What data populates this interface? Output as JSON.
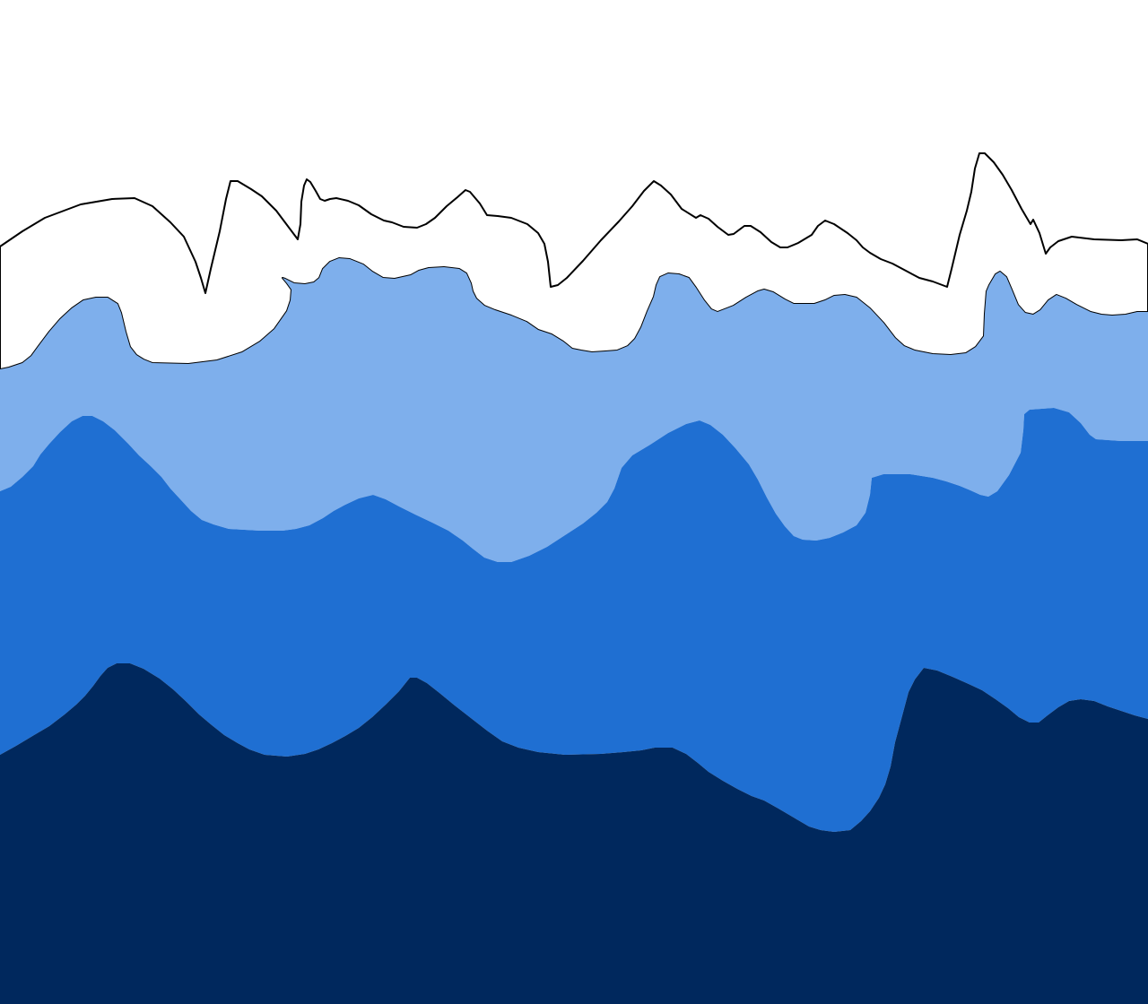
{
  "palette": {
    "background": "#ffffff",
    "white_band": "#ffffff",
    "light_blue_band": "#7eafec",
    "medium_blue_band": "#1f6fd2",
    "navy_band": "#00285d",
    "outline": "#000000"
  }
}
